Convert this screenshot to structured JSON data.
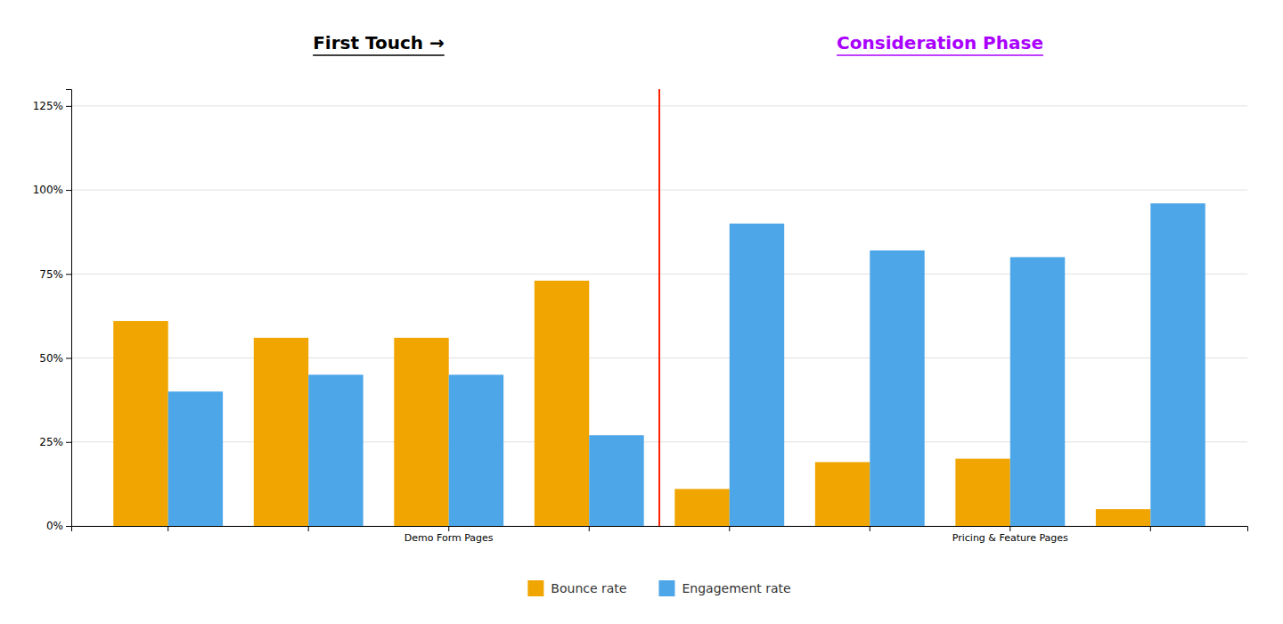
{
  "chart_data": {
    "type": "bar",
    "categories": [
      null,
      null,
      "Demo Form Pages",
      null,
      null,
      null,
      "Pricing  & Feature Pages",
      null
    ],
    "series": [
      {
        "name": "Bounce rate",
        "color": "#f0a500",
        "values": [
          0.61,
          0.56,
          0.56,
          0.73,
          0.11,
          0.19,
          0.2,
          0.05
        ]
      },
      {
        "name": "Engagement rate",
        "color": "#4da6e8",
        "values": [
          0.4,
          0.45,
          0.45,
          0.27,
          0.9,
          0.82,
          0.8,
          0.96
        ]
      }
    ],
    "ylim": [
      0,
      1.3
    ],
    "yticks": [
      {
        "value": 0,
        "label": "0%"
      },
      {
        "value": 0.25,
        "label": "25%"
      },
      {
        "value": 0.5,
        "label": "50%"
      },
      {
        "value": 0.75,
        "label": "75%"
      },
      {
        "value": 1.0,
        "label": "100%"
      },
      {
        "value": 1.25,
        "label": "125%"
      }
    ],
    "annotations": [
      {
        "text": "First Touch →",
        "color": "#000000"
      },
      {
        "text": "Consideration Phase",
        "color": "#aa00ff"
      }
    ],
    "grid": true,
    "legend": "bottom"
  }
}
